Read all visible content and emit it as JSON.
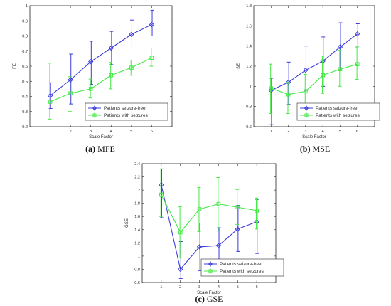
{
  "chart_data": [
    {
      "type": "line",
      "caption_letter": "(a)",
      "caption_text": " MFE",
      "xlabel": "Scale Factor",
      "ylabel": "FE",
      "xlim": [
        0,
        7
      ],
      "ylim": [
        0.2,
        1.0
      ],
      "xticks": [
        1,
        2,
        3,
        4,
        5,
        6
      ],
      "yticks": [
        0.2,
        0.3,
        0.4,
        0.5,
        0.6,
        0.7,
        0.8,
        0.9,
        1
      ],
      "legend_position": "lower-right",
      "x": [
        1,
        2,
        3,
        4,
        5,
        6
      ],
      "series": [
        {
          "name": "Patients seizure-free",
          "color": "#3b3bdb",
          "values": [
            0.405,
            0.51,
            0.63,
            0.72,
            0.81,
            0.875
          ],
          "err_low": [
            0.32,
            0.35,
            0.48,
            0.61,
            0.72,
            0.8
          ],
          "err_high": [
            0.49,
            0.68,
            0.765,
            0.83,
            0.905,
            0.97
          ]
        },
        {
          "name": "Patients with seizures",
          "color": "#44e844",
          "values": [
            0.365,
            0.42,
            0.45,
            0.54,
            0.59,
            0.655
          ],
          "err_low": [
            0.25,
            0.3,
            0.39,
            0.45,
            0.54,
            0.6
          ],
          "err_high": [
            0.62,
            0.53,
            0.515,
            0.625,
            0.64,
            0.72
          ]
        }
      ]
    },
    {
      "type": "line",
      "caption_letter": "(b)",
      "caption_text": " MSE",
      "xlabel": "Scale Factor",
      "ylabel": "SE",
      "xlim": [
        0,
        7
      ],
      "ylim": [
        0.6,
        1.8
      ],
      "xticks": [
        1,
        2,
        3,
        4,
        5,
        6
      ],
      "yticks": [
        0.6,
        0.8,
        1,
        1.2,
        1.4,
        1.6,
        1.8
      ],
      "legend_position": "lower-right",
      "x": [
        1,
        2,
        3,
        4,
        5,
        6
      ],
      "series": [
        {
          "name": "Patients seizure-free",
          "color": "#3b3bdb",
          "values": [
            0.96,
            1.04,
            1.16,
            1.25,
            1.39,
            1.52
          ],
          "err_low": [
            0.62,
            0.82,
            0.96,
            1.0,
            1.16,
            1.4
          ],
          "err_high": [
            1.08,
            1.24,
            1.4,
            1.49,
            1.63,
            1.62
          ]
        },
        {
          "name": "Patients with seizures",
          "color": "#44e844",
          "values": [
            0.98,
            0.92,
            0.95,
            1.11,
            1.17,
            1.22
          ],
          "err_low": [
            0.73,
            0.73,
            0.77,
            0.93,
            1.0,
            1.07
          ],
          "err_high": [
            1.22,
            1.04,
            1.12,
            1.3,
            1.36,
            1.39
          ]
        }
      ]
    },
    {
      "type": "line",
      "caption_letter": "(c)",
      "caption_text": " GSE",
      "xlabel": "Scale Factor",
      "ylabel": "GSE",
      "xlim": [
        0,
        7
      ],
      "ylim": [
        0.6,
        2.4
      ],
      "xticks": [
        1,
        2,
        3,
        4,
        5,
        6
      ],
      "yticks": [
        0.6,
        0.8,
        1,
        1.2,
        1.4,
        1.6,
        1.8,
        2,
        2.2,
        2.4
      ],
      "legend_position": "lower-right",
      "x": [
        1,
        2,
        3,
        4,
        5,
        6
      ],
      "series": [
        {
          "name": "Patients seizure-free",
          "color": "#3b3bdb",
          "values": [
            2.08,
            0.8,
            1.14,
            1.16,
            1.41,
            1.52
          ],
          "err_low": [
            1.58,
            0.66,
            0.78,
            0.87,
            1.07,
            1.04
          ],
          "err_high": [
            2.32,
            1.22,
            1.5,
            1.43,
            1.77,
            1.86
          ]
        },
        {
          "name": "Patients with seizures",
          "color": "#44e844",
          "values": [
            1.93,
            1.36,
            1.71,
            1.79,
            1.74,
            1.69
          ],
          "err_low": [
            1.6,
            0.97,
            1.37,
            1.38,
            1.48,
            1.41
          ],
          "err_high": [
            2.32,
            1.75,
            2.04,
            2.19,
            2.01,
            1.88
          ]
        }
      ]
    }
  ]
}
